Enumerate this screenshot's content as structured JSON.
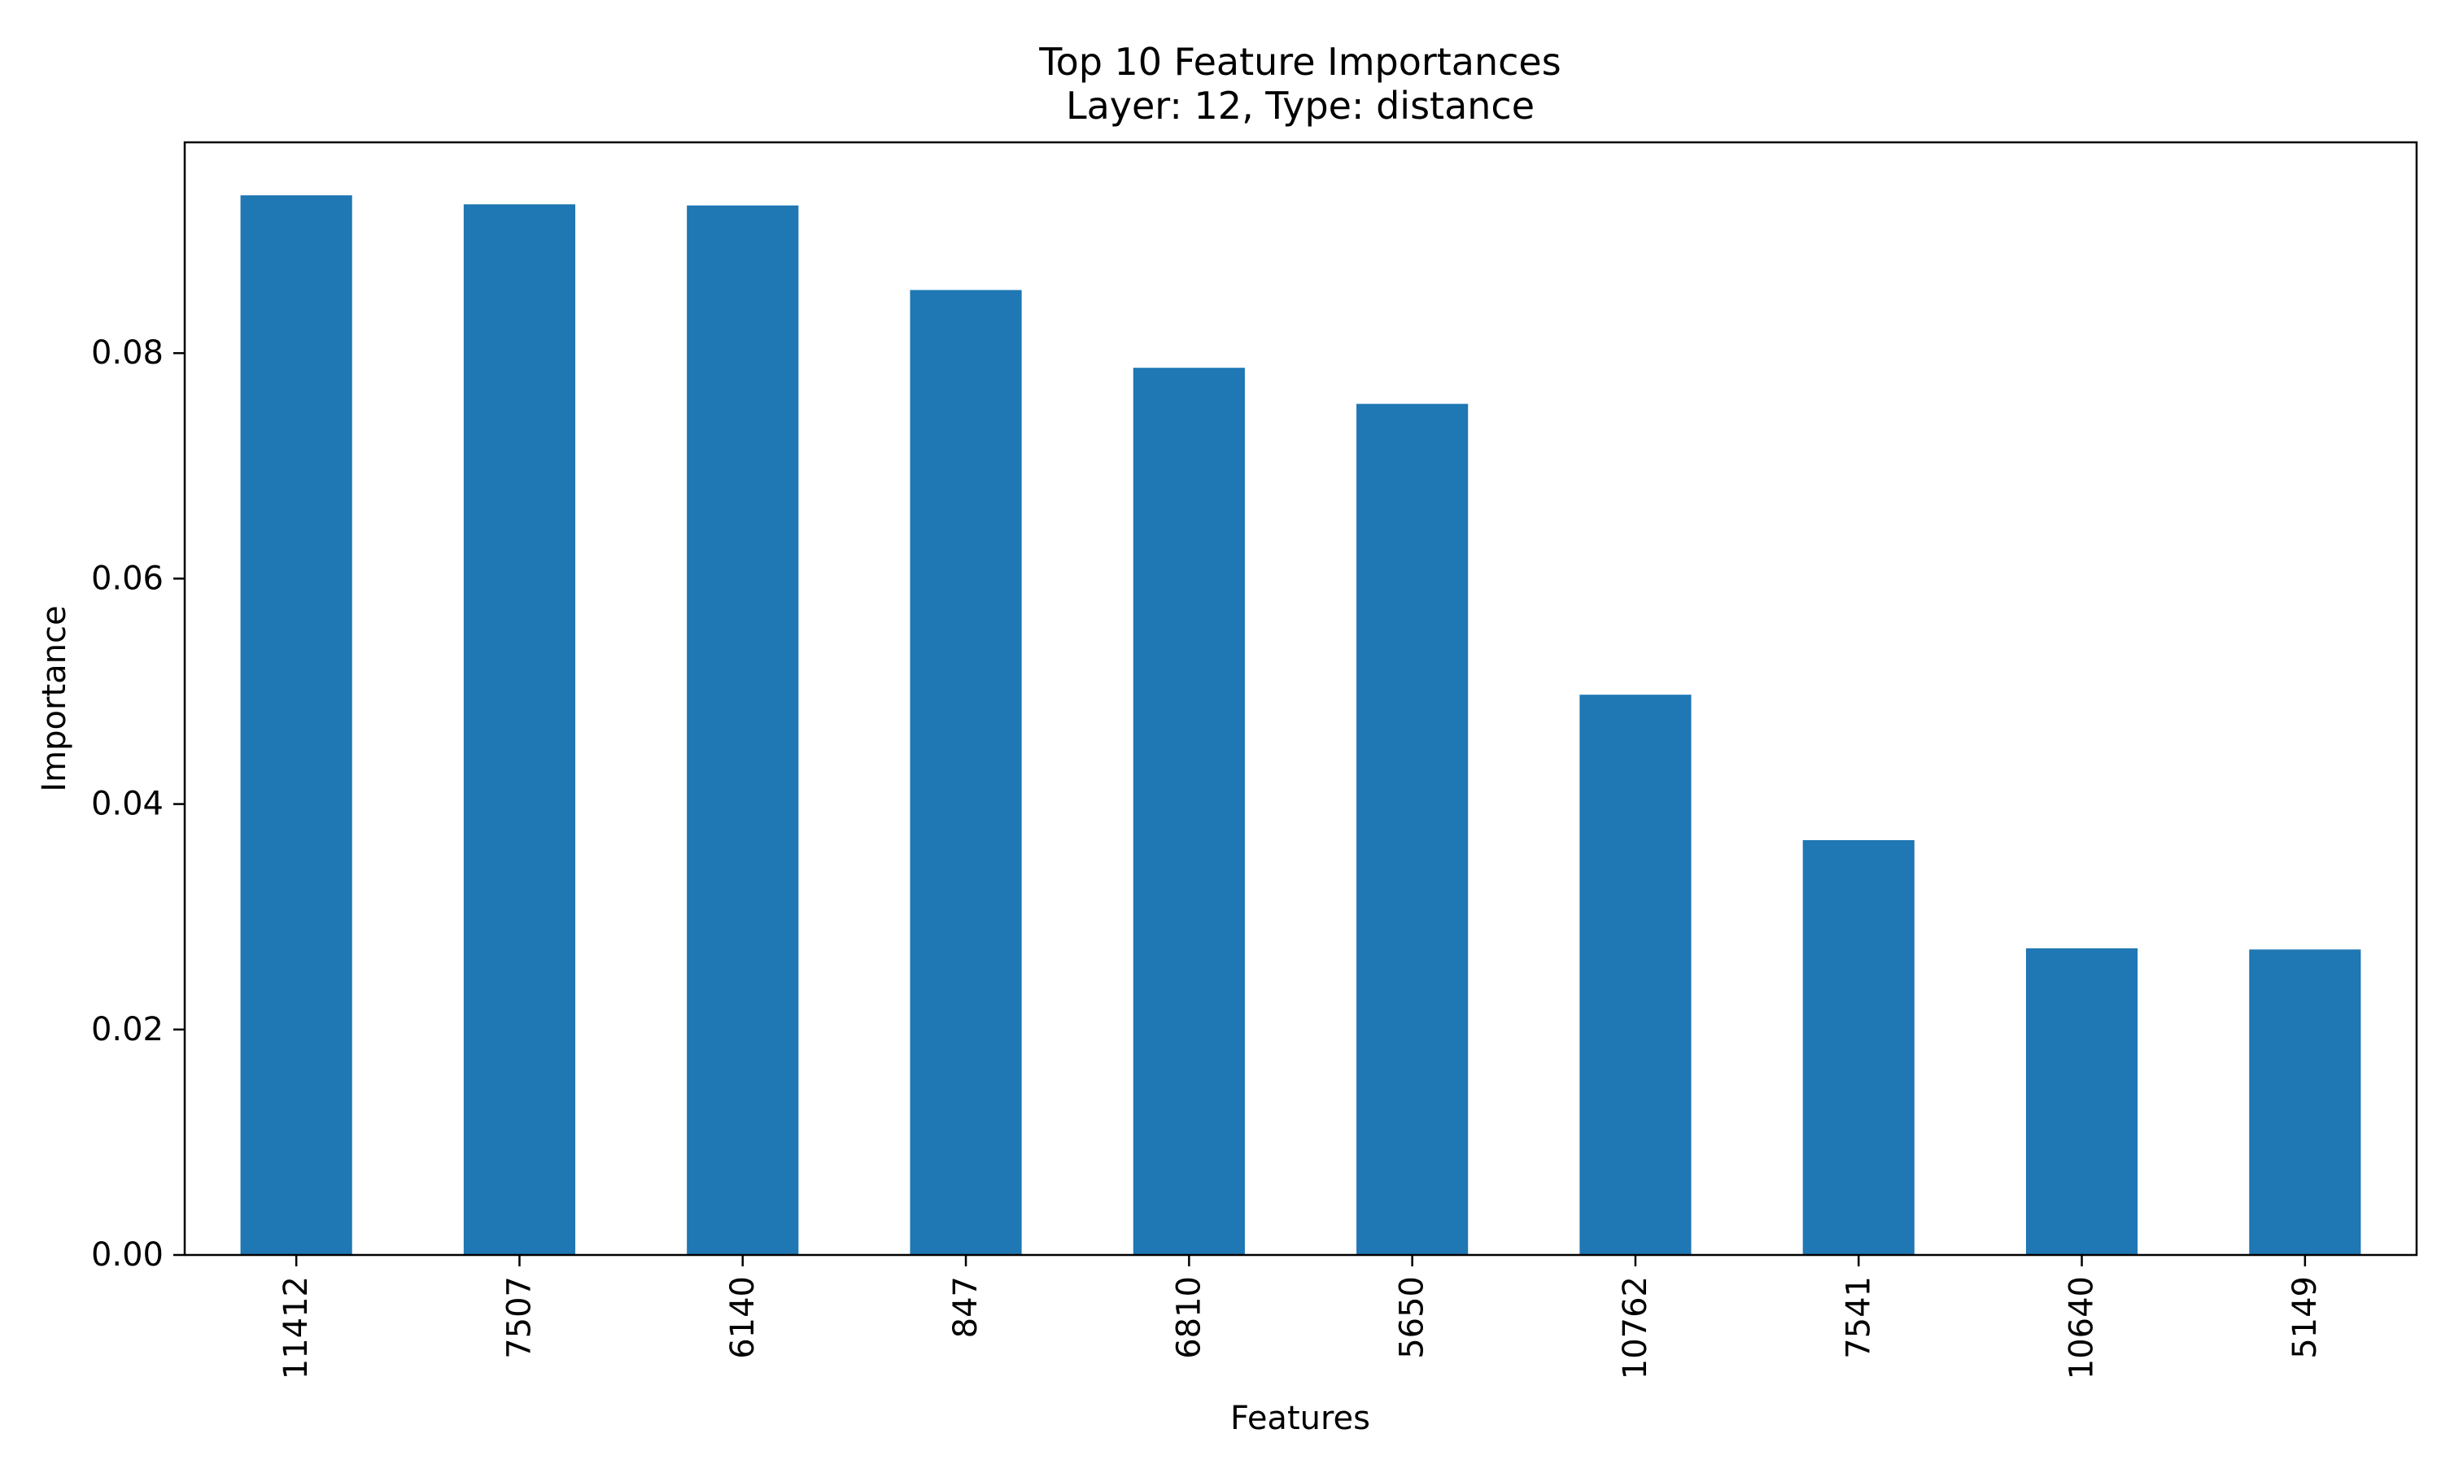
{
  "chart_data": {
    "type": "bar",
    "title": "Top 10 Feature Importances",
    "subtitle": "Layer: 12, Type: distance",
    "xlabel": "Features",
    "ylabel": "Importance",
    "categories": [
      "11412",
      "7507",
      "6140",
      "847",
      "6810",
      "5650",
      "10762",
      "7541",
      "10640",
      "5149"
    ],
    "values": [
      0.094,
      0.0932,
      0.0931,
      0.0856,
      0.0787,
      0.0755,
      0.0497,
      0.0368,
      0.0272,
      0.0271
    ],
    "ylim": [
      0,
      0.0987
    ],
    "yticks": [
      0.0,
      0.02,
      0.04,
      0.06,
      0.08
    ],
    "ytick_labels": [
      "0.00",
      "0.02",
      "0.04",
      "0.06",
      "0.08"
    ],
    "grid": false,
    "bar_color": "#1f77b4"
  }
}
